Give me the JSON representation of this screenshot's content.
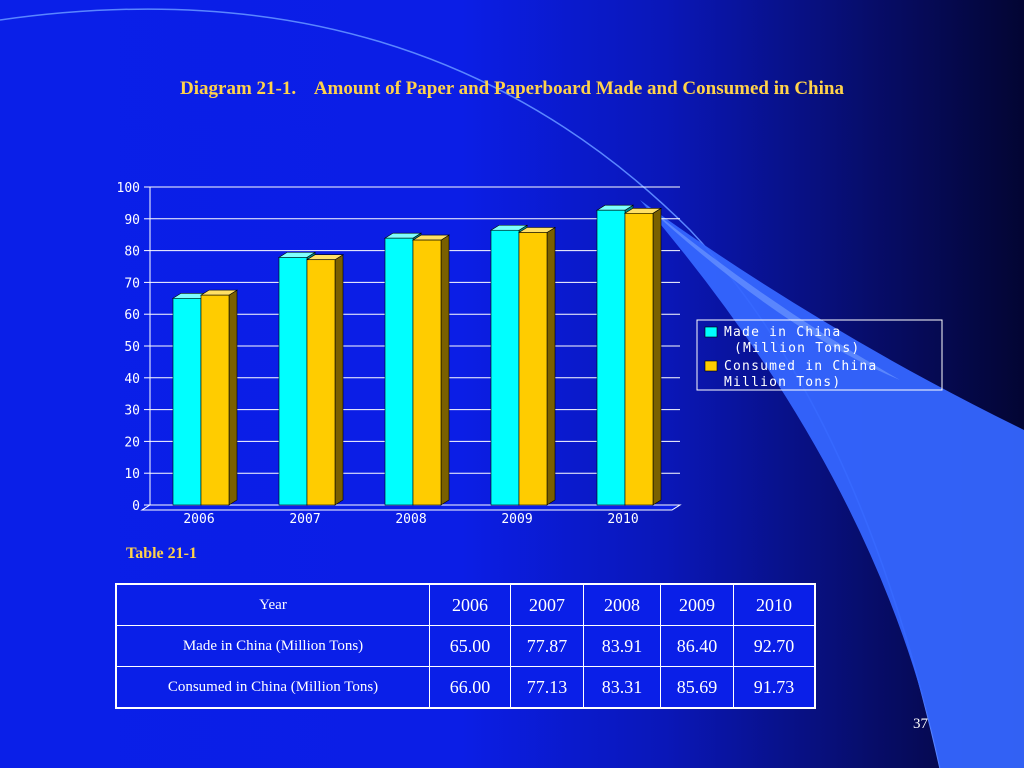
{
  "title": {
    "number": "Diagram 21-1.",
    "text": "Amount of Paper and Paperboard Made and Consumed in China"
  },
  "chart_data": {
    "type": "bar",
    "categories": [
      "2006",
      "2007",
      "2008",
      "2009",
      "2010"
    ],
    "series": [
      {
        "name": "Made in China (Million Tons)",
        "name_lines": [
          "Made in China",
          "(Million Tons)"
        ],
        "values": [
          65.0,
          77.87,
          83.91,
          86.4,
          92.7
        ],
        "color": "#00ffff",
        "side_color": "#008a8a",
        "top_color": "#7fffff"
      },
      {
        "name": "Consumed in China Million Tons)",
        "name_lines": [
          "Consumed in China",
          "Million Tons)"
        ],
        "values": [
          66.0,
          77.13,
          83.31,
          85.69,
          91.73
        ],
        "color": "#ffcc00",
        "side_color": "#7a6000",
        "top_color": "#ffe066"
      }
    ],
    "yticks": [
      "0",
      "10",
      "20",
      "30",
      "40",
      "50",
      "60",
      "70",
      "80",
      "90",
      "100"
    ],
    "ylim": [
      0,
      100
    ],
    "grid": true,
    "legend_position": "right",
    "style": "3d"
  },
  "table": {
    "caption": "Table 21-1",
    "header": {
      "label": "Year",
      "values": [
        "2006",
        "2007",
        "2008",
        "2009",
        "2010"
      ]
    },
    "rows": [
      {
        "label": "Made in China (Million Tons)",
        "values": [
          "65.00",
          "77.87",
          "83.91",
          "86.40",
          "92.70"
        ]
      },
      {
        "label": "Consumed in China (Million Tons)",
        "values": [
          "66.00",
          "77.13",
          "83.31",
          "85.69",
          "91.73"
        ]
      }
    ]
  },
  "page_number": "37",
  "colors": {
    "background": "#0a1fe8",
    "title": "#ffd24a",
    "decor": "#3a6bff"
  }
}
